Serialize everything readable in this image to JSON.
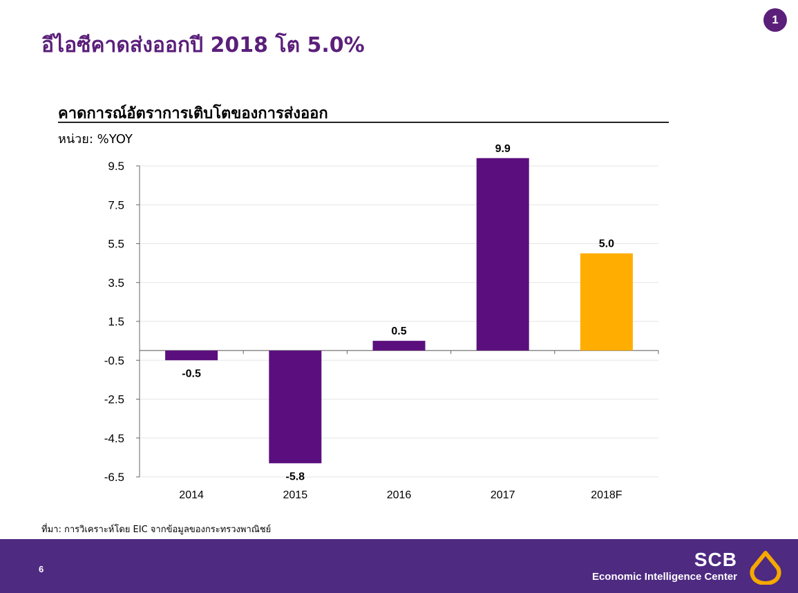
{
  "slide": {
    "title": "อีไอซีคาดส่งออกปี 2018 โต 5.0%",
    "badge": "1",
    "page_number": "6"
  },
  "chart_data": {
    "type": "bar",
    "title": "คาดการณ์อัตราการเติบโตของการส่งออก",
    "ylabel": "หน่วย: %YOY",
    "xlabel": "",
    "categories": [
      "2014",
      "2015",
      "2016",
      "2017",
      "2018F"
    ],
    "values": [
      -0.5,
      -5.8,
      0.5,
      9.9,
      5.0
    ],
    "value_labels": [
      "-0.5",
      "-5.8",
      "0.5",
      "9.9",
      "5.0"
    ],
    "colors": [
      "#5b0f7e",
      "#5b0f7e",
      "#5b0f7e",
      "#5b0f7e",
      "#ffad00"
    ],
    "yticks": [
      "9.5",
      "7.5",
      "5.5",
      "3.5",
      "1.5",
      "-0.5",
      "-2.5",
      "-4.5",
      "-6.5"
    ],
    "ylim": [
      -6.5,
      9.5
    ],
    "grid": true,
    "legend": "none"
  },
  "source": "ที่มา: การวิเคราะห์โดย EIC จากข้อมูลของกระทรวงพาณิชย์",
  "brand": {
    "name": "SCB",
    "subtitle": "Economic Intelligence Center",
    "logo_color": "#f5a800",
    "footer_color": "#4e2a81"
  }
}
